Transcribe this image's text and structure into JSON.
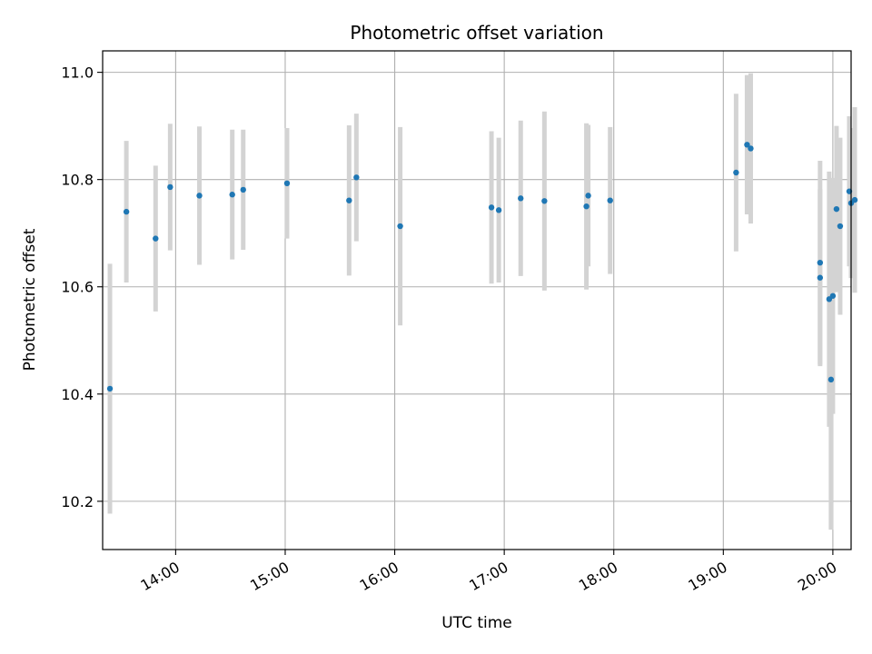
{
  "chart_data": {
    "type": "scatter",
    "title": "Photometric offset variation",
    "xlabel": "UTC time",
    "ylabel": "Photometric offset",
    "xlim": [
      "13:20",
      "20:10"
    ],
    "ylim": [
      10.11,
      11.04
    ],
    "x_ticks": [
      "14:00",
      "15:00",
      "16:00",
      "17:00",
      "18:00",
      "19:00",
      "20:00"
    ],
    "y_ticks": [
      10.2,
      10.4,
      10.6,
      10.8,
      11.0
    ],
    "y_tick_labels": [
      "10.2",
      "10.4",
      "10.6",
      "10.8",
      "11.0"
    ],
    "grid": true,
    "point_color": "#1f77b4",
    "errorbar_color": "#d3d3d3",
    "points": [
      {
        "t": "13:24",
        "y": 10.41,
        "err": 0.233
      },
      {
        "t": "13:33",
        "y": 10.74,
        "err": 0.132
      },
      {
        "t": "13:49",
        "y": 10.69,
        "err": 0.136
      },
      {
        "t": "13:57",
        "y": 10.786,
        "err": 0.118
      },
      {
        "t": "14:13",
        "y": 10.77,
        "err": 0.129
      },
      {
        "t": "14:31",
        "y": 10.772,
        "err": 0.121
      },
      {
        "t": "14:37",
        "y": 10.781,
        "err": 0.112
      },
      {
        "t": "15:01",
        "y": 10.793,
        "err": 0.103
      },
      {
        "t": "15:35",
        "y": 10.761,
        "err": 0.14
      },
      {
        "t": "15:39",
        "y": 10.804,
        "err": 0.119
      },
      {
        "t": "16:03",
        "y": 10.713,
        "err": 0.185
      },
      {
        "t": "16:53",
        "y": 10.748,
        "err": 0.142
      },
      {
        "t": "16:57",
        "y": 10.743,
        "err": 0.135
      },
      {
        "t": "17:09",
        "y": 10.765,
        "err": 0.145
      },
      {
        "t": "17:22",
        "y": 10.76,
        "err": 0.167
      },
      {
        "t": "17:45",
        "y": 10.75,
        "err": 0.155
      },
      {
        "t": "17:46",
        "y": 10.77,
        "err": 0.132
      },
      {
        "t": "17:58",
        "y": 10.761,
        "err": 0.137
      },
      {
        "t": "19:07",
        "y": 10.813,
        "err": 0.147
      },
      {
        "t": "19:13",
        "y": 10.865,
        "err": 0.13
      },
      {
        "t": "19:15",
        "y": 10.858,
        "err": 0.14
      },
      {
        "t": "19:53",
        "y": 10.645,
        "err": 0.19
      },
      {
        "t": "19:53",
        "y": 10.617,
        "err": 0.165
      },
      {
        "t": "19:58",
        "y": 10.577,
        "err": 0.238
      },
      {
        "t": "19:59",
        "y": 10.427,
        "err": 0.28
      },
      {
        "t": "20:00",
        "y": 10.583,
        "err": 0.22
      },
      {
        "t": "20:02",
        "y": 10.745,
        "err": 0.155
      },
      {
        "t": "20:04",
        "y": 10.713,
        "err": 0.165
      },
      {
        "t": "20:09",
        "y": 10.778,
        "err": 0.14
      },
      {
        "t": "20:10",
        "y": 10.756,
        "err": 0.14
      },
      {
        "t": "20:12",
        "y": 10.762,
        "err": 0.173
      }
    ]
  }
}
